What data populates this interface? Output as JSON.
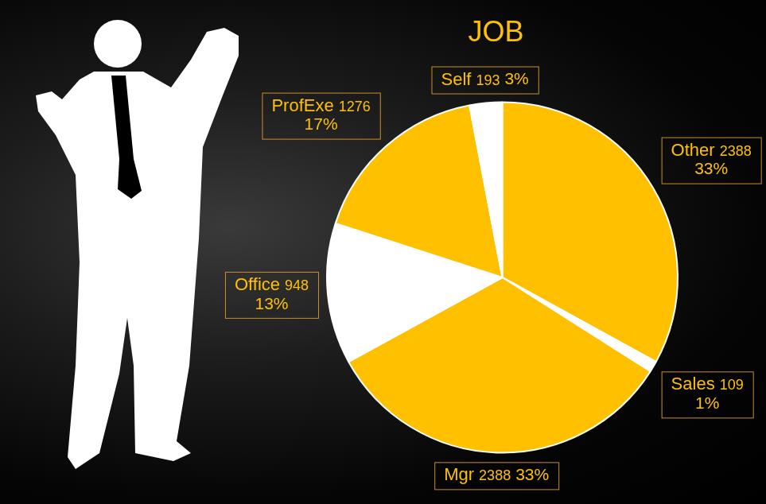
{
  "chart_data": {
    "type": "pie",
    "title": "JOB",
    "categories": [
      "Other",
      "Sales",
      "Mgr",
      "Office",
      "ProfExe",
      "Self"
    ],
    "values": [
      33,
      1,
      33,
      13,
      17,
      3
    ],
    "value_labels": [
      "33%",
      "1%",
      "33%",
      "13%",
      "17%",
      "3%"
    ],
    "counts": [
      2388,
      109,
      2388,
      948,
      1276,
      193
    ],
    "colors": [
      "#ffc000",
      "#ffffff",
      "#ffc000",
      "#ffffff",
      "#ffc000",
      "#ffffff"
    ],
    "data_labels": true
  }
}
